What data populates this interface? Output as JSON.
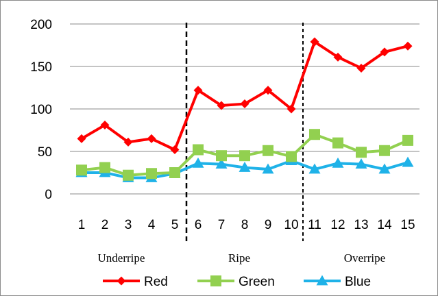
{
  "chart_data": {
    "type": "line",
    "title": "",
    "xlabel": "",
    "ylabel": "",
    "categories": [
      "1",
      "2",
      "3",
      "4",
      "5",
      "6",
      "7",
      "8",
      "9",
      "10",
      "11",
      "12",
      "13",
      "14",
      "15"
    ],
    "ylim": [
      0,
      200
    ],
    "yticks": [
      "0",
      "50",
      "100",
      "150",
      "200"
    ],
    "grid": true,
    "legend_position": "bottom",
    "series": [
      {
        "name": "Red",
        "color": "#ff0000",
        "marker": "diamond",
        "values": [
          65,
          81,
          61,
          65,
          52,
          122,
          104,
          106,
          122,
          100,
          179,
          161,
          148,
          167,
          174
        ]
      },
      {
        "name": "Green",
        "color": "#92d050",
        "marker": "square",
        "values": [
          28,
          31,
          22,
          24,
          25,
          52,
          45,
          45,
          51,
          44,
          70,
          60,
          49,
          51,
          63
        ]
      },
      {
        "name": "Blue",
        "color": "#1fb2e8",
        "marker": "triangle",
        "values": [
          25,
          25,
          19,
          19,
          24,
          36,
          35,
          31,
          29,
          39,
          29,
          36,
          35,
          29,
          37
        ]
      }
    ],
    "annotations": {
      "phases": [
        "Underripe",
        "Ripe",
        "Overripe"
      ],
      "dividers_after": [
        "5",
        "10"
      ]
    }
  }
}
